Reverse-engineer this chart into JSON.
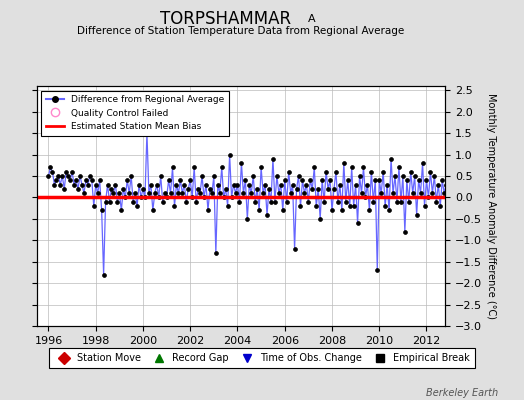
{
  "title": "TORPSHAMMAR",
  "title_sub": "A",
  "subtitle": "Difference of Station Temperature Data from Regional Average",
  "ylabel": "Monthly Temperature Anomaly Difference (°C)",
  "xlim": [
    1995.5,
    2012.8
  ],
  "ylim": [
    -3.0,
    2.6
  ],
  "yticks": [
    -3,
    -2.5,
    -2,
    -1.5,
    -1,
    -0.5,
    0,
    0.5,
    1,
    1.5,
    2,
    2.5
  ],
  "xticks": [
    1996,
    1998,
    2000,
    2002,
    2004,
    2006,
    2008,
    2010,
    2012
  ],
  "bias_value": 0.0,
  "line_color": "#6666ff",
  "marker_color": "#000000",
  "bias_color": "#ff0000",
  "bg_color": "#e0e0e0",
  "plot_bg": "#ffffff",
  "grid_color": "#bbbbbb",
  "watermark": "Berkeley Earth",
  "legend1_label": "Difference from Regional Average",
  "legend2_label": "Quality Control Failed",
  "legend3_label": "Estimated Station Mean Bias",
  "bottom_legend": [
    {
      "label": "Station Move",
      "color": "#cc0000",
      "marker": "D"
    },
    {
      "label": "Record Gap",
      "color": "#007700",
      "marker": "^"
    },
    {
      "label": "Time of Obs. Change",
      "color": "#0000cc",
      "marker": "v"
    },
    {
      "label": "Empirical Break",
      "color": "#000000",
      "marker": "s"
    }
  ],
  "data_vals": [
    0.5,
    0.7,
    0.6,
    0.3,
    0.4,
    0.5,
    0.3,
    0.5,
    0.2,
    0.6,
    0.5,
    0.4,
    0.6,
    0.3,
    0.4,
    0.2,
    0.5,
    0.3,
    0.1,
    0.4,
    0.3,
    0.5,
    0.4,
    -0.2,
    0.3,
    0.1,
    0.4,
    -0.3,
    -1.8,
    -0.1,
    0.3,
    -0.1,
    0.2,
    0.1,
    0.3,
    -0.1,
    0.1,
    -0.3,
    0.2,
    0.0,
    0.4,
    0.1,
    0.5,
    -0.1,
    0.1,
    -0.2,
    0.3,
    0.0,
    0.2,
    0.0,
    1.5,
    0.1,
    0.3,
    -0.3,
    0.1,
    0.3,
    0.0,
    0.5,
    -0.1,
    0.1,
    0.0,
    0.4,
    0.1,
    0.7,
    -0.2,
    0.3,
    0.1,
    0.4,
    0.1,
    0.3,
    -0.1,
    0.2,
    0.4,
    0.0,
    0.7,
    -0.1,
    0.2,
    0.1,
    0.5,
    0.0,
    0.3,
    -0.3,
    0.2,
    0.1,
    0.5,
    -1.3,
    0.3,
    0.1,
    0.7,
    0.0,
    0.2,
    -0.2,
    1.0,
    0.0,
    0.3,
    0.1,
    0.3,
    -0.1,
    0.8,
    0.1,
    0.4,
    -0.5,
    0.3,
    0.1,
    0.5,
    -0.1,
    0.2,
    -0.3,
    0.7,
    0.1,
    0.3,
    -0.4,
    0.2,
    -0.1,
    0.9,
    -0.1,
    0.5,
    0.1,
    0.3,
    -0.3,
    0.4,
    -0.1,
    0.6,
    0.1,
    0.3,
    -1.2,
    0.2,
    0.5,
    -0.2,
    0.4,
    0.1,
    0.3,
    -0.1,
    0.4,
    0.2,
    0.7,
    -0.2,
    0.2,
    -0.5,
    0.4,
    -0.1,
    0.6,
    0.2,
    0.4,
    -0.3,
    0.2,
    0.6,
    -0.1,
    0.3,
    -0.3,
    0.8,
    -0.1,
    0.4,
    -0.2,
    0.7,
    -0.2,
    0.3,
    -0.6,
    0.5,
    0.1,
    0.7,
    0.0,
    0.3,
    -0.3,
    0.6,
    -0.1,
    0.4,
    -1.7,
    0.4,
    0.1,
    0.6,
    -0.2,
    0.3,
    -0.3,
    0.9,
    0.1,
    0.5,
    -0.1,
    0.7,
    -0.1,
    0.5,
    -0.8,
    0.4,
    -0.1,
    0.6,
    0.1,
    0.5,
    -0.4,
    0.4,
    0.1,
    0.8,
    -0.2,
    0.4,
    0.0,
    0.6,
    0.1,
    0.5,
    -0.1,
    0.3,
    -0.2,
    0.4,
    0.1,
    0.3,
    -0.4
  ]
}
